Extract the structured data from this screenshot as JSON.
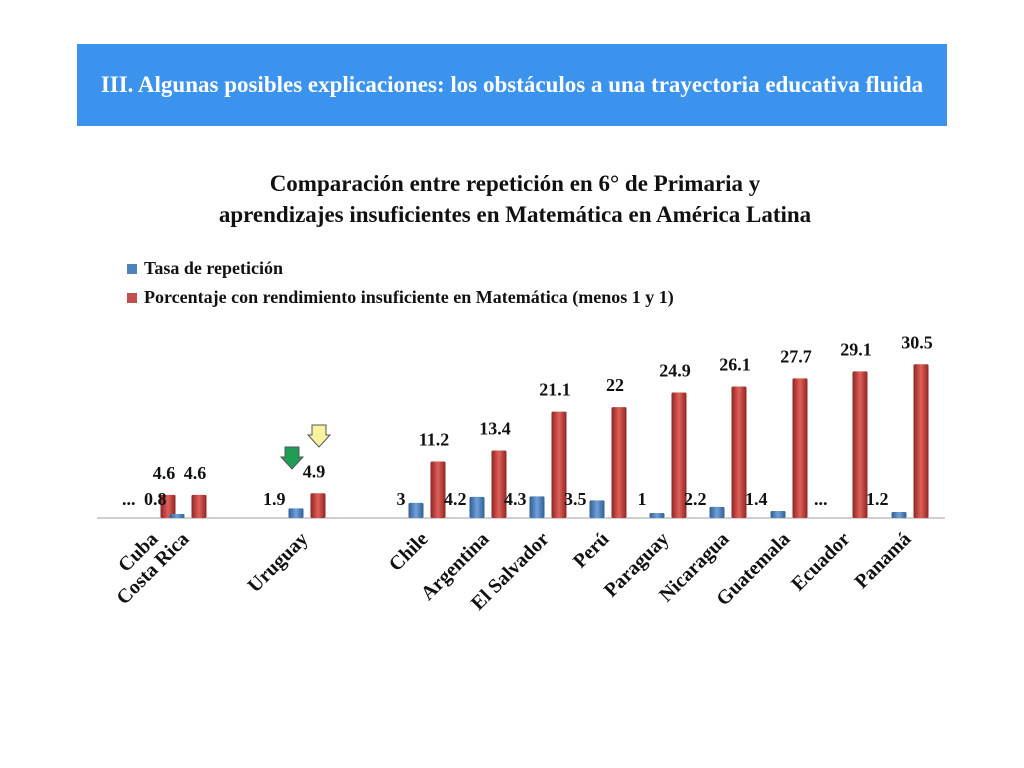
{
  "banner": {
    "title": "III. Algunas posibles explicaciones: los obstáculos a una trayectoria educativa fluida"
  },
  "colors": {
    "banner_bg": "#3b93ee",
    "series_repeticion": "#4f81bd",
    "series_matematica": "#c0504d"
  },
  "chart_data": {
    "type": "bar",
    "title_line1": "Comparación entre repetición en 6° de Primaria y",
    "title_line2": "aprendizajes insuficientes en Matemática en América Latina",
    "categories": [
      "Cuba",
      "Costa Rica",
      "Uruguay",
      "Chile",
      "Argentina",
      "El Salvador",
      "Perú",
      "Paraguay",
      "Nicaragua",
      "Guatemala",
      "Ecuador",
      "Panamá"
    ],
    "series": [
      {
        "name": "Tasa de repetición",
        "values": [
          null,
          0.8,
          1.9,
          3,
          4.2,
          4.3,
          3.5,
          1,
          2.2,
          1.4,
          null,
          1.2
        ],
        "labels": [
          "...",
          "0.8",
          "1.9",
          "3",
          "4.2",
          "4.3",
          "3.5",
          "1",
          "2.2",
          "1.4",
          "...",
          "1.2"
        ]
      },
      {
        "name": "Porcentaje con rendimiento insuficiente en Matemática (menos 1 y 1)",
        "values": [
          4.6,
          4.6,
          4.9,
          11.2,
          13.4,
          21.1,
          22,
          24.9,
          26.1,
          27.7,
          29.1,
          30.5
        ],
        "labels": [
          "4.6",
          "4.6",
          "4.9",
          "11.2",
          "13.4",
          "21.1",
          "22",
          "24.9",
          "26.1",
          "27.7",
          "29.1",
          "30.5"
        ]
      }
    ],
    "legend_position": "top-left",
    "highlighted_category": "Uruguay",
    "gridlines": false
  }
}
